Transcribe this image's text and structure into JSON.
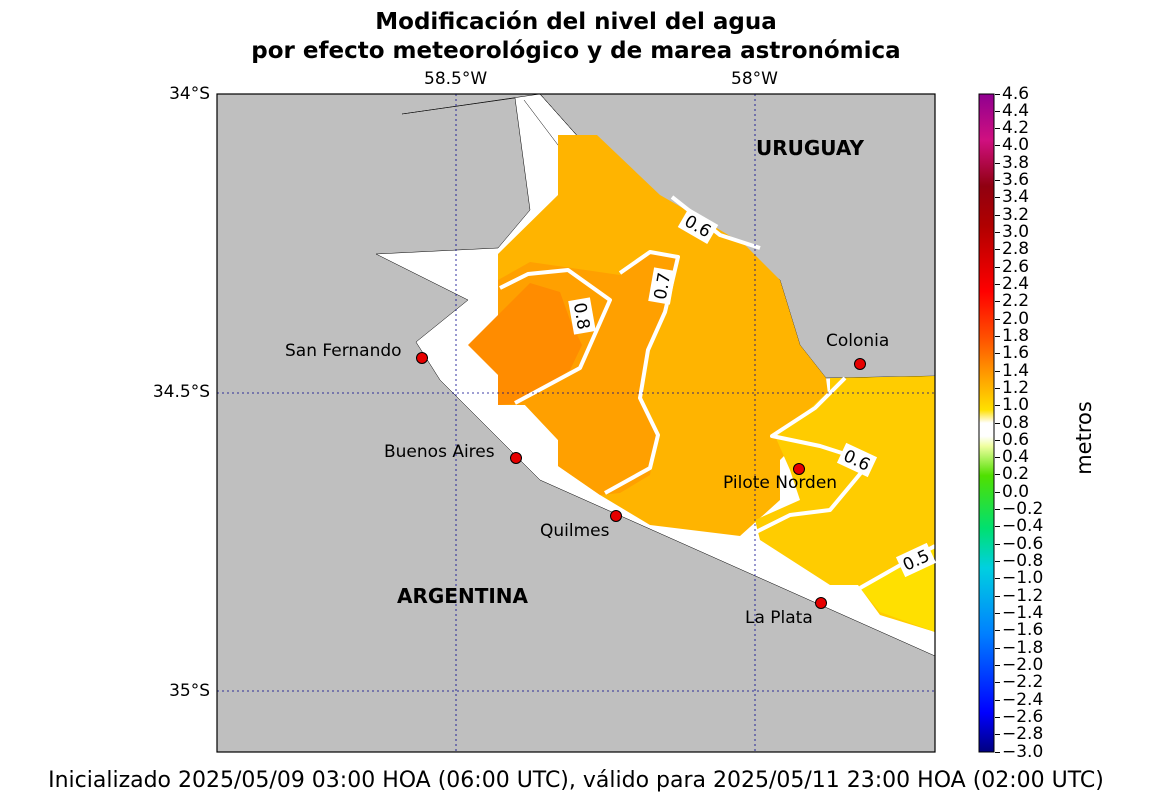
{
  "title_line1": "Modificación del nivel del agua",
  "title_line2": "por efecto meteorológico y de marea astronómica",
  "footer": "Inicializado 2025/05/09 03:00 HOA (06:00 UTC), válido para 2025/05/11 23:00 HOA (02:00 UTC)",
  "lon_labels": [
    "58.5°W",
    "58°W"
  ],
  "lat_labels": [
    "34°S",
    "34.5°S",
    "35°S"
  ],
  "countries": {
    "uruguay": "URUGUAY",
    "argentina": "ARGENTINA"
  },
  "cities": {
    "san_fernando": "San Fernando",
    "buenos_aires": "Buenos Aires",
    "quilmes": "Quilmes",
    "colonia": "Colonia",
    "pilote_norden": "Pilote Norden",
    "la_plata": "La Plata"
  },
  "contours": {
    "c06a": "0.6",
    "c07": "0.7",
    "c08": "0.8",
    "c06b": "0.6",
    "c05": "0.5"
  },
  "colorbar": {
    "label": "metros",
    "ticks": [
      "4.6",
      "4.4",
      "4.2",
      "4.0",
      "3.8",
      "3.6",
      "3.4",
      "3.2",
      "3.0",
      "2.8",
      "2.6",
      "2.4",
      "2.2",
      "2.0",
      "1.8",
      "1.6",
      "1.4",
      "1.2",
      "1.0",
      "0.8",
      "0.6",
      "0.4",
      "0.2",
      "0.0",
      "−0.2",
      "−0.4",
      "−0.6",
      "−0.8",
      "−1.0",
      "−1.2",
      "−1.4",
      "−1.6",
      "−1.8",
      "−2.0",
      "−2.2",
      "−2.4",
      "−2.6",
      "−2.8",
      "−3.0"
    ]
  },
  "colors": {
    "land": "#bfbfbf",
    "water_low": "#ffe000",
    "level_05": "#ffcc00",
    "level_06": "#ffb400",
    "level_07": "#ffa000",
    "level_08": "#ff8c00",
    "marker": "#e60000"
  }
}
